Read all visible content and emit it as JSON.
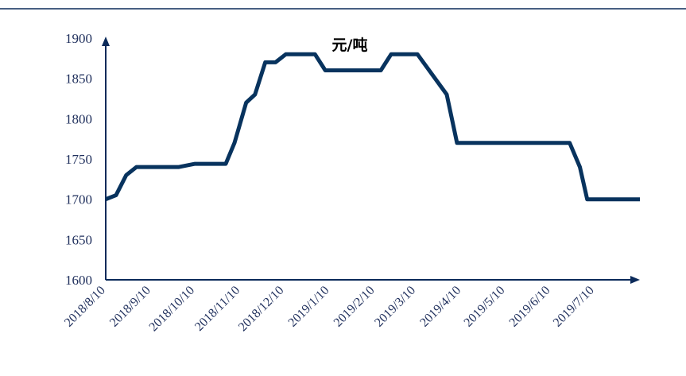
{
  "colors": {
    "line": "#08335e",
    "axis": "#0b2a5a",
    "top_rule": "#0b2a5a",
    "text": "#1f2f5c"
  },
  "chart_data": {
    "type": "line",
    "unit": "元/吨",
    "ylim": [
      1600,
      1900
    ],
    "y_ticks": [
      1600,
      1650,
      1700,
      1750,
      1800,
      1850,
      1900
    ],
    "x_range": [
      "2018-08-10",
      "2019-08-10"
    ],
    "x_ticks": [
      "2018/8/10",
      "2018/9/10",
      "2018/10/10",
      "2018/11/10",
      "2018/12/10",
      "2019/1/10",
      "2019/2/10",
      "2019/3/10",
      "2019/4/10",
      "2019/5/10",
      "2019/6/10",
      "2019/7/10"
    ],
    "grid": false,
    "legend": "none",
    "series": [
      {
        "points": [
          [
            "2018-08-10",
            1700
          ],
          [
            "2018-08-17",
            1705
          ],
          [
            "2018-08-24",
            1730
          ],
          [
            "2018-08-31",
            1740
          ],
          [
            "2018-09-29",
            1740
          ],
          [
            "2018-10-10",
            1744
          ],
          [
            "2018-10-31",
            1744
          ],
          [
            "2018-11-06",
            1770
          ],
          [
            "2018-11-14",
            1820
          ],
          [
            "2018-11-20",
            1830
          ],
          [
            "2018-11-27",
            1870
          ],
          [
            "2018-12-04",
            1870
          ],
          [
            "2018-12-11",
            1880
          ],
          [
            "2018-12-31",
            1880
          ],
          [
            "2019-01-07",
            1860
          ],
          [
            "2019-02-14",
            1860
          ],
          [
            "2019-02-21",
            1880
          ],
          [
            "2019-03-11",
            1880
          ],
          [
            "2019-03-31",
            1830
          ],
          [
            "2019-04-07",
            1770
          ],
          [
            "2019-06-23",
            1770
          ],
          [
            "2019-06-30",
            1740
          ],
          [
            "2019-07-05",
            1700
          ],
          [
            "2019-08-10",
            1700
          ]
        ]
      }
    ]
  }
}
